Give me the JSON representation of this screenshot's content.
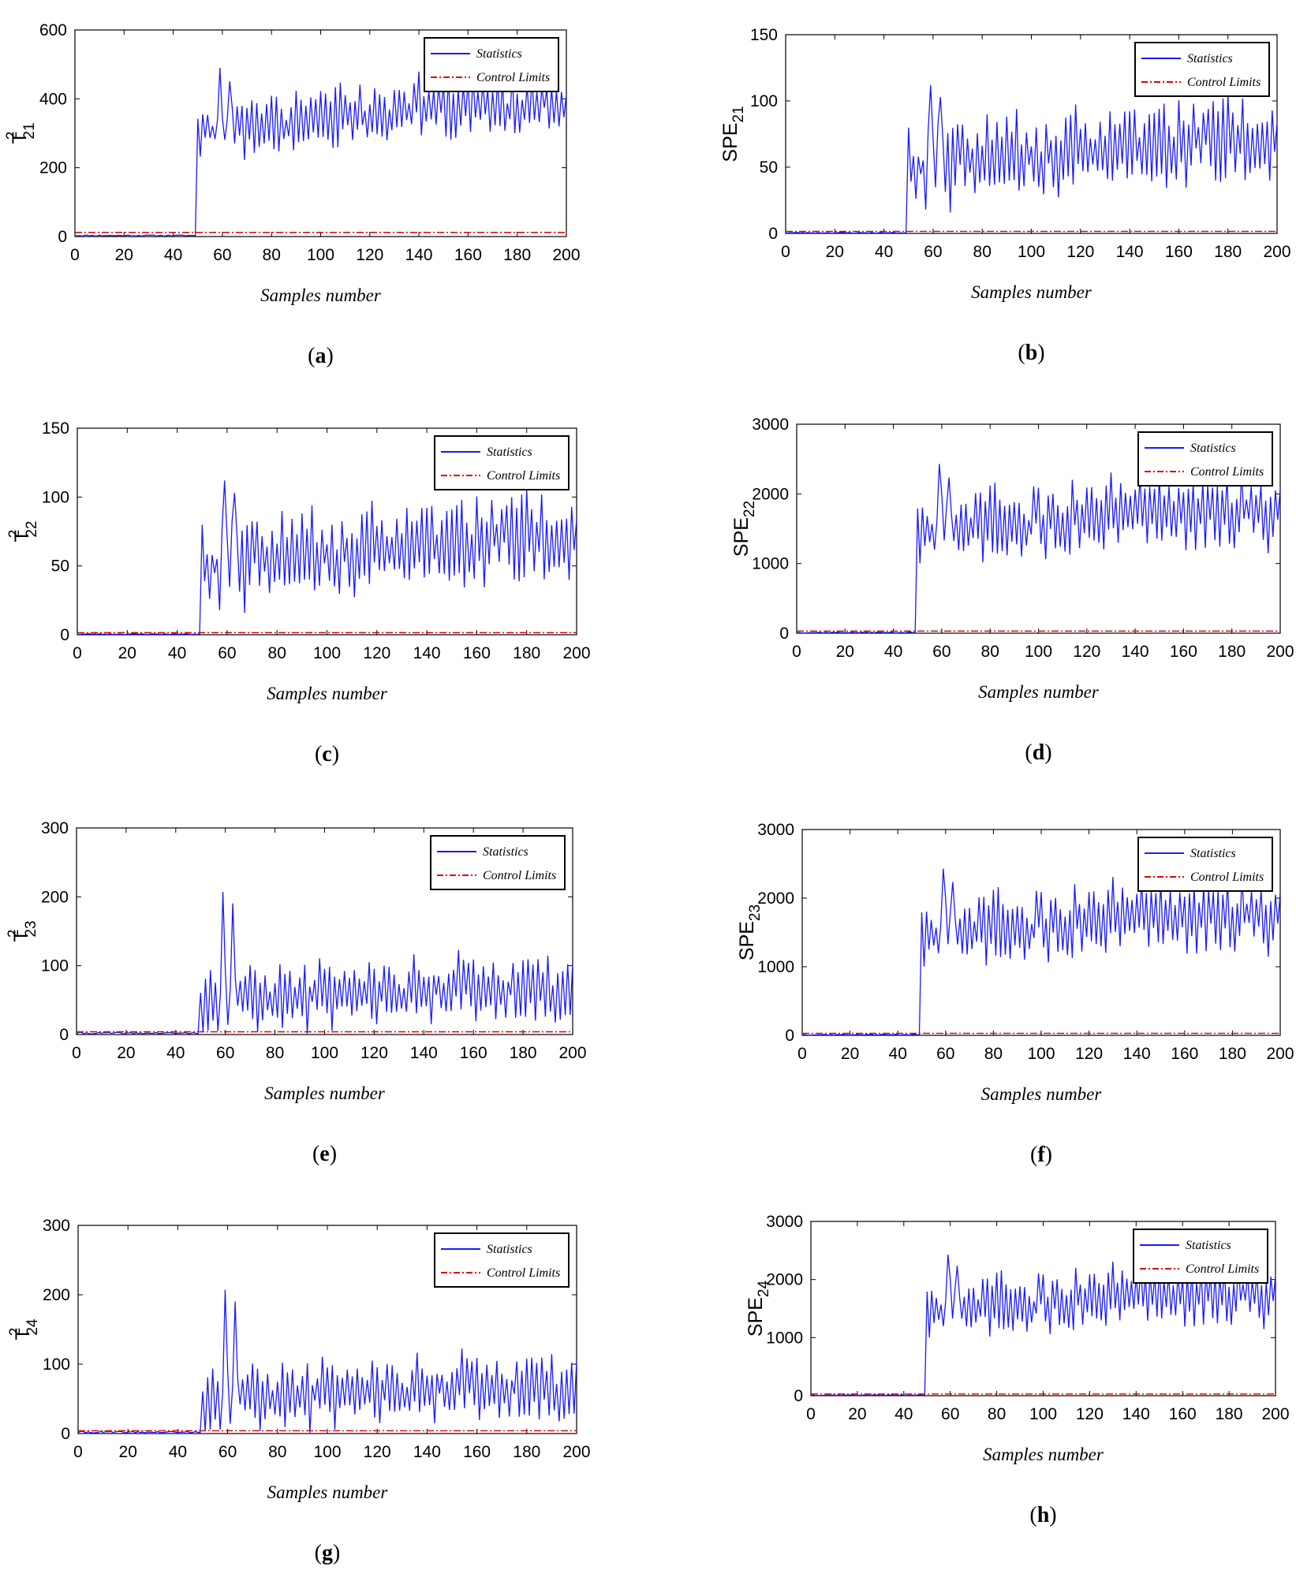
{
  "colors": {
    "statistics": "#1a1aff",
    "control_limits": "#e00000",
    "axes": "#000000"
  },
  "chart_data": [
    {
      "id": "a",
      "caption": "(a)",
      "caption_letter": "a",
      "type": "line",
      "ylabel": {
        "base": "T",
        "sup": "2",
        "sub": "21"
      },
      "xlabel": "Samples number",
      "xlim": [
        0,
        200
      ],
      "ylim": [
        0,
        600
      ],
      "xticks": [
        "0",
        "20",
        "40",
        "60",
        "80",
        "100",
        "120",
        "140",
        "160",
        "180",
        "200"
      ],
      "yticks": [
        "0",
        "200",
        "400",
        "600"
      ],
      "legend": {
        "position": "top-right",
        "entries": [
          "Statistics",
          "Control Limits"
        ]
      },
      "grid": false,
      "pattern": {
        "pre_level": 3,
        "fault_start": 50,
        "post_mean": [
          300,
          380
        ],
        "post_amp": 70,
        "spike": 490,
        "limit": 12,
        "seed": 11
      },
      "series": [
        {
          "name": "Statistics",
          "style": "solid"
        },
        {
          "name": "Control Limits",
          "style": "dash-dot"
        }
      ]
    },
    {
      "id": "b",
      "caption": "(b)",
      "caption_letter": "b",
      "type": "line",
      "ylabel": {
        "base": "SPE",
        "sup": "",
        "sub": "21"
      },
      "xlabel": "Samples number",
      "xlim": [
        0,
        200
      ],
      "ylim": [
        0,
        150
      ],
      "xticks": [
        "0",
        "20",
        "40",
        "60",
        "80",
        "100",
        "120",
        "140",
        "160",
        "180",
        "200"
      ],
      "yticks": [
        "0",
        "50",
        "100",
        "150"
      ],
      "legend": {
        "position": "top-right",
        "entries": [
          "Statistics",
          "Control Limits"
        ]
      },
      "grid": false,
      "pattern": {
        "pre_level": 0.5,
        "fault_start": 50,
        "post_mean": [
          50,
          68
        ],
        "post_amp": 28,
        "spike": 112,
        "limit": 1.5,
        "seed": 23
      },
      "series": [
        {
          "name": "Statistics",
          "style": "solid"
        },
        {
          "name": "Control Limits",
          "style": "dash-dot"
        }
      ]
    },
    {
      "id": "c",
      "caption": "(c)",
      "caption_letter": "c",
      "type": "line",
      "ylabel": {
        "base": "T",
        "sup": "2",
        "sub": "22"
      },
      "xlabel": "Samples number",
      "xlim": [
        0,
        200
      ],
      "ylim": [
        0,
        150
      ],
      "xticks": [
        "0",
        "20",
        "40",
        "60",
        "80",
        "100",
        "120",
        "140",
        "160",
        "180",
        "200"
      ],
      "yticks": [
        "0",
        "50",
        "100",
        "150"
      ],
      "legend": {
        "position": "top-right",
        "entries": [
          "Statistics",
          "Control Limits"
        ]
      },
      "grid": false,
      "pattern": {
        "pre_level": 0.5,
        "fault_start": 50,
        "post_mean": [
          50,
          68
        ],
        "post_amp": 28,
        "spike": 112,
        "limit": 1.5,
        "seed": 23
      },
      "series": [
        {
          "name": "Statistics",
          "style": "solid"
        },
        {
          "name": "Control Limits",
          "style": "dash-dot"
        }
      ]
    },
    {
      "id": "d",
      "caption": "(d)",
      "caption_letter": "d",
      "type": "line",
      "ylabel": {
        "base": "SPE",
        "sup": "",
        "sub": "22"
      },
      "xlabel": "Samples number",
      "xlim": [
        0,
        200
      ],
      "ylim": [
        0,
        3000
      ],
      "xticks": [
        "0",
        "20",
        "40",
        "60",
        "80",
        "100",
        "120",
        "140",
        "160",
        "180",
        "200"
      ],
      "yticks": [
        "0",
        "1000",
        "2000",
        "3000"
      ],
      "legend": {
        "position": "top-right",
        "entries": [
          "Statistics",
          "Control Limits"
        ]
      },
      "grid": false,
      "pattern": {
        "pre_level": 10,
        "fault_start": 50,
        "post_mean": [
          1450,
          1750
        ],
        "post_amp": 420,
        "spike": 2430,
        "limit": 30,
        "seed": 37
      },
      "series": [
        {
          "name": "Statistics",
          "style": "solid"
        },
        {
          "name": "Control Limits",
          "style": "dash-dot"
        }
      ]
    },
    {
      "id": "e",
      "caption": "(e)",
      "caption_letter": "e",
      "type": "line",
      "ylabel": {
        "base": "T",
        "sup": "2",
        "sub": "23"
      },
      "xlabel": "Samples number",
      "xlim": [
        0,
        200
      ],
      "ylim": [
        0,
        300
      ],
      "xticks": [
        "0",
        "20",
        "40",
        "60",
        "80",
        "100",
        "120",
        "140",
        "160",
        "180",
        "200"
      ],
      "yticks": [
        "0",
        "100",
        "200",
        "300"
      ],
      "legend": {
        "position": "top-right",
        "entries": [
          "Statistics",
          "Control Limits"
        ]
      },
      "grid": false,
      "pattern": {
        "pre_level": 2,
        "fault_start": 50,
        "post_mean": [
          50,
          65
        ],
        "post_amp": 40,
        "spike": 207,
        "limit": 4,
        "seed": 41
      },
      "series": [
        {
          "name": "Statistics",
          "style": "solid"
        },
        {
          "name": "Control Limits",
          "style": "dash-dot"
        }
      ]
    },
    {
      "id": "f",
      "caption": "(f)",
      "caption_letter": "f",
      "type": "line",
      "ylabel": {
        "base": "SPE",
        "sup": "",
        "sub": "23"
      },
      "xlabel": "Samples number",
      "xlim": [
        0,
        200
      ],
      "ylim": [
        0,
        3000
      ],
      "xticks": [
        "0",
        "20",
        "40",
        "60",
        "80",
        "100",
        "120",
        "140",
        "160",
        "180",
        "200"
      ],
      "yticks": [
        "0",
        "1000",
        "2000",
        "3000"
      ],
      "legend": {
        "position": "top-right",
        "entries": [
          "Statistics",
          "Control Limits"
        ]
      },
      "grid": false,
      "pattern": {
        "pre_level": 10,
        "fault_start": 50,
        "post_mean": [
          1450,
          1750
        ],
        "post_amp": 420,
        "spike": 2430,
        "limit": 30,
        "seed": 37
      },
      "series": [
        {
          "name": "Statistics",
          "style": "solid"
        },
        {
          "name": "Control Limits",
          "style": "dash-dot"
        }
      ]
    },
    {
      "id": "g",
      "caption": "(g)",
      "caption_letter": "g",
      "type": "line",
      "ylabel": {
        "base": "T",
        "sup": "2",
        "sub": "24"
      },
      "xlabel": "Samples number",
      "xlim": [
        0,
        200
      ],
      "ylim": [
        0,
        300
      ],
      "xticks": [
        "0",
        "20",
        "40",
        "60",
        "80",
        "100",
        "120",
        "140",
        "160",
        "180",
        "200"
      ],
      "yticks": [
        "0",
        "100",
        "200",
        "300"
      ],
      "legend": {
        "position": "top-right",
        "entries": [
          "Statistics",
          "Control Limits"
        ]
      },
      "grid": false,
      "pattern": {
        "pre_level": 2,
        "fault_start": 50,
        "post_mean": [
          50,
          65
        ],
        "post_amp": 40,
        "spike": 207,
        "limit": 4,
        "seed": 41
      },
      "series": [
        {
          "name": "Statistics",
          "style": "solid"
        },
        {
          "name": "Control Limits",
          "style": "dash-dot"
        }
      ]
    },
    {
      "id": "h",
      "caption": "(h)",
      "caption_letter": "h",
      "type": "line",
      "ylabel": {
        "base": "SPE",
        "sup": "",
        "sub": "24"
      },
      "xlabel": "Samples number",
      "xlim": [
        0,
        200
      ],
      "ylim": [
        0,
        3000
      ],
      "xticks": [
        "0",
        "20",
        "40",
        "60",
        "80",
        "100",
        "120",
        "140",
        "160",
        "180",
        "200"
      ],
      "yticks": [
        "0",
        "1000",
        "2000",
        "3000"
      ],
      "legend": {
        "position": "top-right",
        "entries": [
          "Statistics",
          "Control Limits"
        ]
      },
      "grid": false,
      "pattern": {
        "pre_level": 10,
        "fault_start": 50,
        "post_mean": [
          1450,
          1750
        ],
        "post_amp": 420,
        "spike": 2430,
        "limit": 30,
        "seed": 37
      },
      "series": [
        {
          "name": "Statistics",
          "style": "solid"
        },
        {
          "name": "Control Limits",
          "style": "dash-dot"
        }
      ]
    }
  ]
}
